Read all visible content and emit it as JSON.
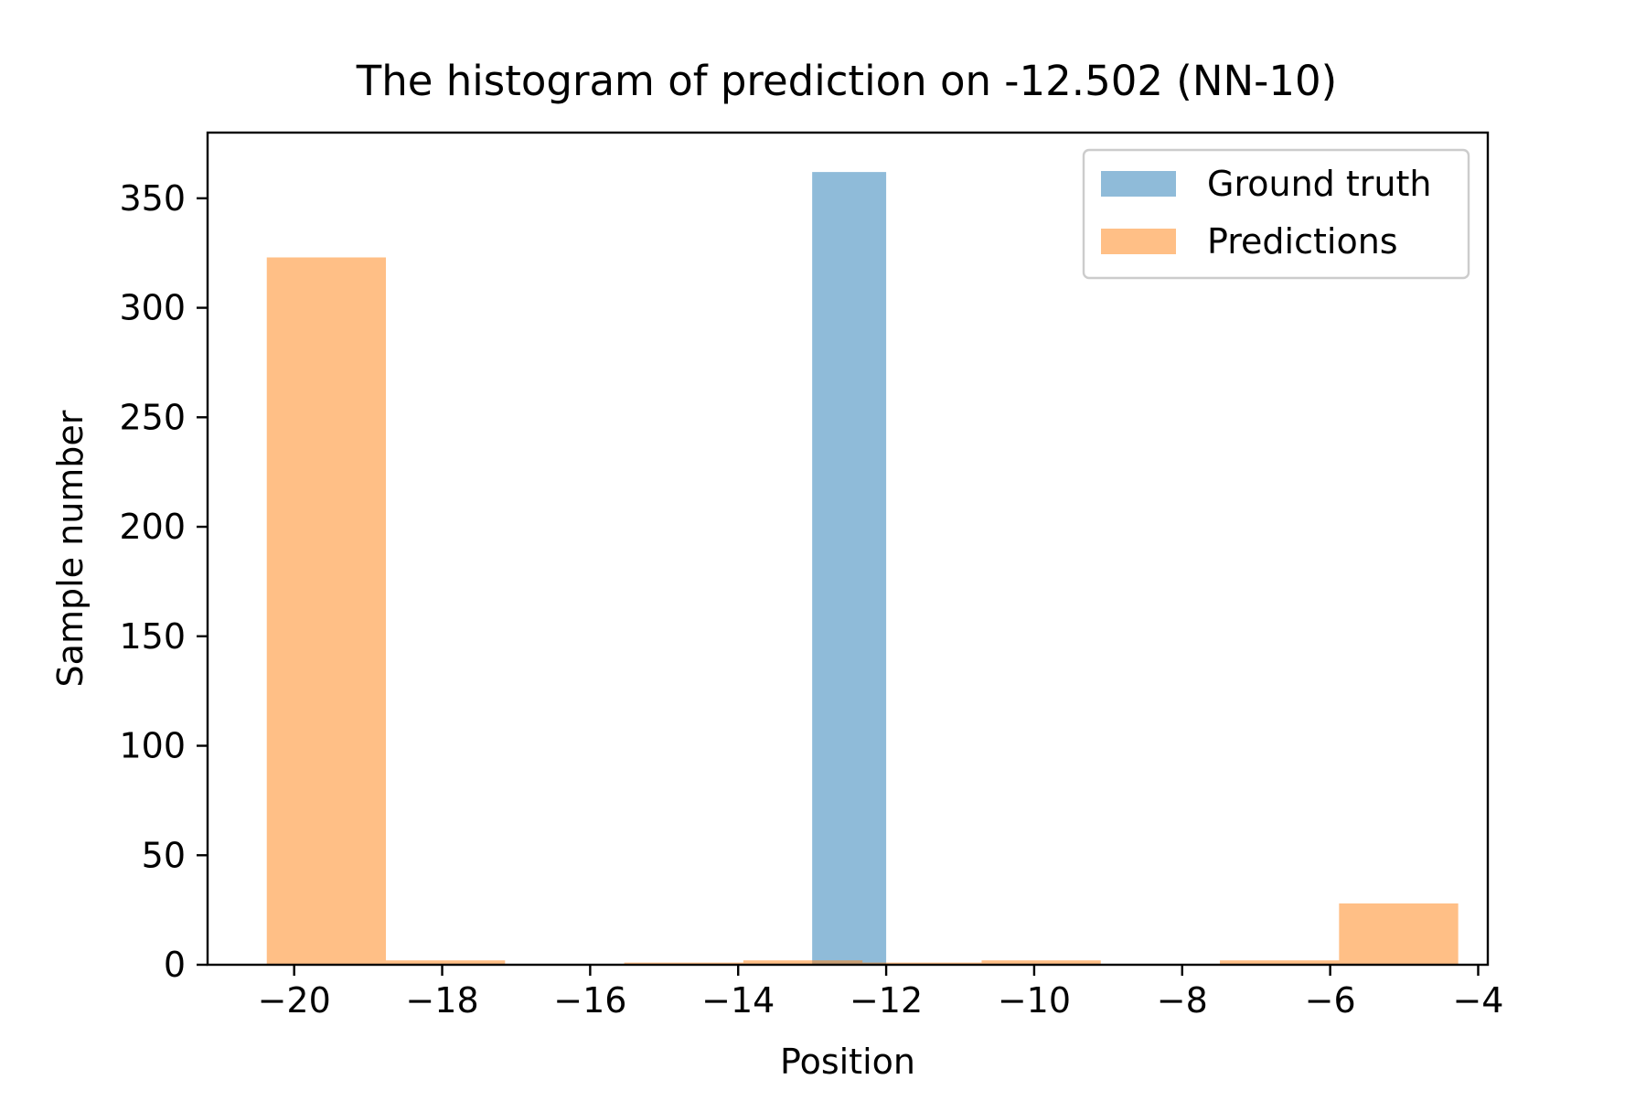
{
  "chart_data": {
    "type": "bar",
    "title": "The histogram of prediction on -12.502 (NN-10)",
    "xlabel": "Position",
    "ylabel": "Sample number",
    "xlim": [
      -21.17,
      -3.87
    ],
    "ylim": [
      0,
      380
    ],
    "xticks": [
      -20,
      -18,
      -16,
      -14,
      -12,
      -10,
      -8,
      -6,
      -4
    ],
    "xtick_labels": [
      "−20",
      "−18",
      "−16",
      "−14",
      "−12",
      "−10",
      "−8",
      "−6",
      "−4"
    ],
    "yticks": [
      0,
      50,
      100,
      150,
      200,
      250,
      300,
      350
    ],
    "ytick_labels": [
      "0",
      "50",
      "100",
      "150",
      "200",
      "250",
      "300",
      "350"
    ],
    "grid": false,
    "legend_position": "top-right",
    "series": [
      {
        "name": "Ground truth",
        "color": "#1f77b4",
        "opacity": 0.5,
        "bins": [
          {
            "x0": -13.0,
            "x1": -12.0,
            "value": 362
          }
        ]
      },
      {
        "name": "Predictions",
        "color": "#ff7f0e",
        "opacity": 0.5,
        "bins": [
          {
            "x0": -20.37,
            "x1": -18.76,
            "value": 323
          },
          {
            "x0": -18.76,
            "x1": -17.15,
            "value": 2
          },
          {
            "x0": -17.15,
            "x1": -15.54,
            "value": 0
          },
          {
            "x0": -15.54,
            "x1": -13.93,
            "value": 1
          },
          {
            "x0": -13.93,
            "x1": -12.32,
            "value": 2
          },
          {
            "x0": -12.32,
            "x1": -10.71,
            "value": 1
          },
          {
            "x0": -10.71,
            "x1": -9.1,
            "value": 2
          },
          {
            "x0": -9.1,
            "x1": -7.49,
            "value": 0
          },
          {
            "x0": -7.49,
            "x1": -5.88,
            "value": 2
          },
          {
            "x0": -5.88,
            "x1": -4.27,
            "value": 28
          }
        ]
      }
    ]
  }
}
